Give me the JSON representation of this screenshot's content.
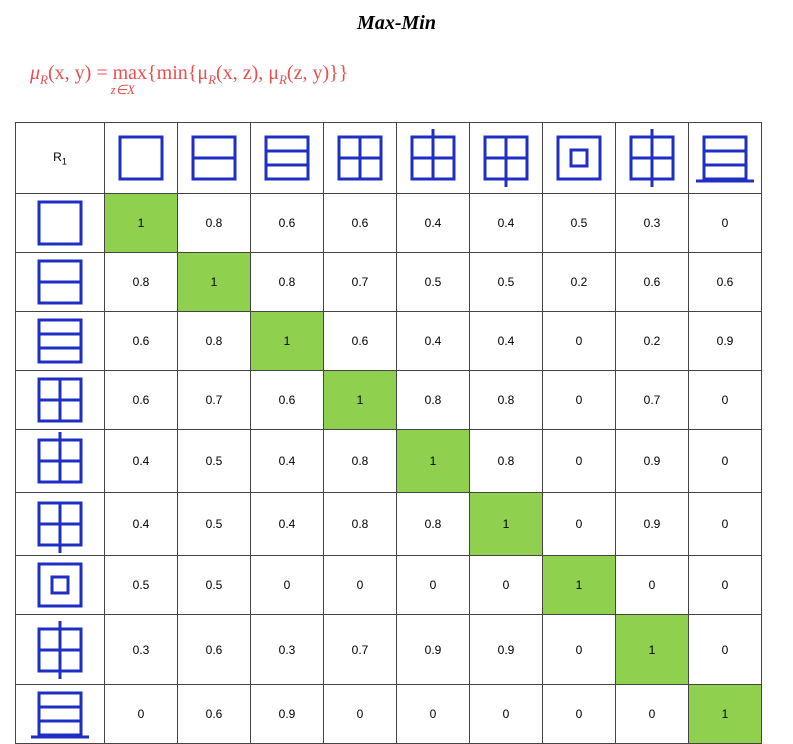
{
  "title": "Max-Min",
  "formula": [
    "μ",
    "R",
    "(x, y) = ",
    "max",
    "z∈X",
    "{min{μ",
    "R",
    "(x, z), μ",
    "R",
    "(z, y)}}"
  ],
  "corner": {
    "text": "R",
    "sub": "1"
  },
  "table": {
    "rows": [
      [
        "1",
        "0.8",
        "0.6",
        "0.6",
        "0.4",
        "0.4",
        "0.5",
        "0.3",
        "0"
      ],
      [
        "0.8",
        "1",
        "0.8",
        "0.7",
        "0.5",
        "0.5",
        "0.2",
        "0.6",
        "0.6"
      ],
      [
        "0.6",
        "0.8",
        "1",
        "0.6",
        "0.4",
        "0.4",
        "0",
        "0.2",
        "0.9"
      ],
      [
        "0.6",
        "0.7",
        "0.6",
        "1",
        "0.8",
        "0.8",
        "0",
        "0.7",
        "0"
      ],
      [
        "0.4",
        "0.5",
        "0.4",
        "0.8",
        "1",
        "0.8",
        "0",
        "0.9",
        "0"
      ],
      [
        "0.4",
        "0.5",
        "0.4",
        "0.8",
        "0.8",
        "1",
        "0",
        "0.9",
        "0"
      ],
      [
        "0.5",
        "0.5",
        "0",
        "0",
        "0",
        "0",
        "1",
        "0",
        "0"
      ],
      [
        "0.3",
        "0.6",
        "0.3",
        "0.7",
        "0.9",
        "0.9",
        "0",
        "1",
        "0"
      ],
      [
        "0",
        "0.6",
        "0.9",
        "0",
        "0",
        "0",
        "0",
        "0",
        "1"
      ]
    ]
  }
}
